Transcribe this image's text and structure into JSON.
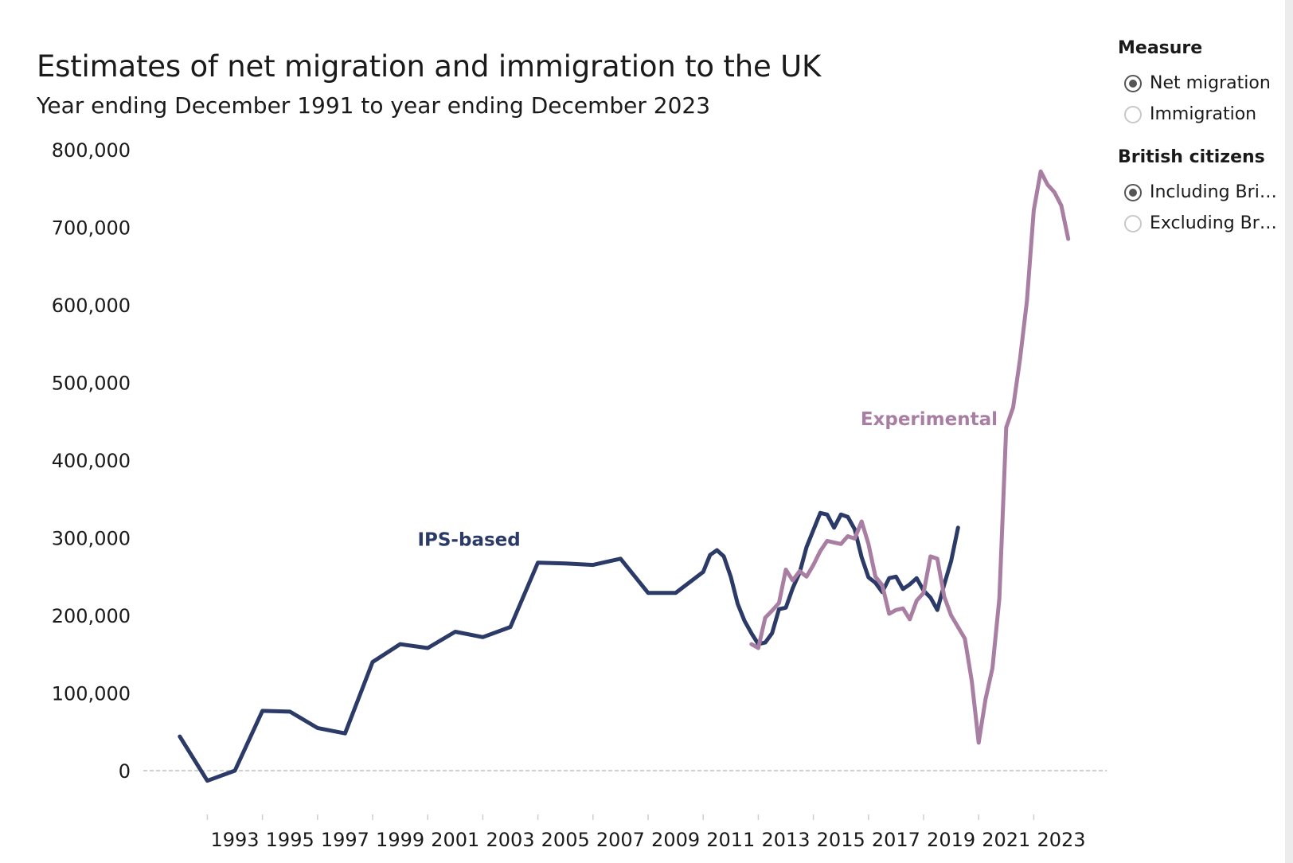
{
  "chart_data": {
    "type": "line",
    "title": "Estimates of net migration and immigration to the UK",
    "subtitle": "Year ending December 1991 to year ending December 2023",
    "ylim": [
      -20000,
      800000
    ],
    "y_ticks": [
      0,
      100000,
      200000,
      300000,
      400000,
      500000,
      600000,
      700000,
      800000
    ],
    "y_tick_labels": [
      "0",
      "100,000",
      "200,000",
      "300,000",
      "400,000",
      "500,000",
      "600,000",
      "700,000",
      "800,000"
    ],
    "x_tick_labels": [
      "1993",
      "1995",
      "1997",
      "1999",
      "2001",
      "2003",
      "2005",
      "2007",
      "2009",
      "2011",
      "2013",
      "2015",
      "2017",
      "2019",
      "2021",
      "2023"
    ],
    "xlim": [
      1990.7,
      2024.9
    ],
    "grid": false,
    "zero_line": "dashed",
    "series": [
      {
        "name": "IPS-based",
        "color": "#2b3a67",
        "points": [
          [
            1991.0,
            44000
          ],
          [
            1992.0,
            -13000
          ],
          [
            1993.0,
            0
          ],
          [
            1994.0,
            77000
          ],
          [
            1995.0,
            76000
          ],
          [
            1996.0,
            55000
          ],
          [
            1997.0,
            48000
          ],
          [
            1998.0,
            140000
          ],
          [
            1999.0,
            163000
          ],
          [
            2000.0,
            158000
          ],
          [
            2001.0,
            179000
          ],
          [
            2002.0,
            172000
          ],
          [
            2003.0,
            185000
          ],
          [
            2004.0,
            268000
          ],
          [
            2005.0,
            267000
          ],
          [
            2006.0,
            265000
          ],
          [
            2007.0,
            273000
          ],
          [
            2008.0,
            229000
          ],
          [
            2009.0,
            229000
          ],
          [
            2010.0,
            256000
          ],
          [
            2010.25,
            278000
          ],
          [
            2010.5,
            284000
          ],
          [
            2010.75,
            276000
          ],
          [
            2011.0,
            250000
          ],
          [
            2011.25,
            215000
          ],
          [
            2011.5,
            193000
          ],
          [
            2011.75,
            177000
          ],
          [
            2012.0,
            163000
          ],
          [
            2012.25,
            165000
          ],
          [
            2012.5,
            177000
          ],
          [
            2012.75,
            208000
          ],
          [
            2013.0,
            210000
          ],
          [
            2013.25,
            235000
          ],
          [
            2013.5,
            255000
          ],
          [
            2013.75,
            288000
          ],
          [
            2014.0,
            310000
          ],
          [
            2014.25,
            332000
          ],
          [
            2014.5,
            330000
          ],
          [
            2014.75,
            313000
          ],
          [
            2015.0,
            330000
          ],
          [
            2015.25,
            327000
          ],
          [
            2015.5,
            311000
          ],
          [
            2015.75,
            275000
          ],
          [
            2016.0,
            249000
          ],
          [
            2016.25,
            242000
          ],
          [
            2016.5,
            230000
          ],
          [
            2016.75,
            248000
          ],
          [
            2017.0,
            250000
          ],
          [
            2017.25,
            234000
          ],
          [
            2017.5,
            240000
          ],
          [
            2017.75,
            248000
          ],
          [
            2018.0,
            232000
          ],
          [
            2018.25,
            223000
          ],
          [
            2018.5,
            207000
          ],
          [
            2018.75,
            240000
          ],
          [
            2019.0,
            270000
          ],
          [
            2019.25,
            313000
          ]
        ]
      },
      {
        "name": "Experimental",
        "color": "#a97ea3",
        "points": [
          [
            2011.75,
            163000
          ],
          [
            2012.0,
            158000
          ],
          [
            2012.25,
            197000
          ],
          [
            2012.5,
            206000
          ],
          [
            2012.75,
            216000
          ],
          [
            2013.0,
            259000
          ],
          [
            2013.25,
            245000
          ],
          [
            2013.5,
            257000
          ],
          [
            2013.75,
            250000
          ],
          [
            2014.0,
            265000
          ],
          [
            2014.25,
            283000
          ],
          [
            2014.5,
            296000
          ],
          [
            2014.75,
            294000
          ],
          [
            2015.0,
            292000
          ],
          [
            2015.25,
            302000
          ],
          [
            2015.5,
            299000
          ],
          [
            2015.75,
            321000
          ],
          [
            2016.0,
            292000
          ],
          [
            2016.25,
            250000
          ],
          [
            2016.5,
            239000
          ],
          [
            2016.75,
            202000
          ],
          [
            2017.0,
            207000
          ],
          [
            2017.25,
            209000
          ],
          [
            2017.5,
            195000
          ],
          [
            2017.75,
            219000
          ],
          [
            2018.0,
            229000
          ],
          [
            2018.25,
            276000
          ],
          [
            2018.5,
            273000
          ],
          [
            2018.75,
            224000
          ],
          [
            2019.0,
            200000
          ],
          [
            2019.25,
            185000
          ],
          [
            2019.5,
            170000
          ],
          [
            2019.75,
            115000
          ],
          [
            2020.0,
            36000
          ],
          [
            2020.25,
            92000
          ],
          [
            2020.5,
            132000
          ],
          [
            2020.75,
            222000
          ],
          [
            2021.0,
            442000
          ],
          [
            2021.25,
            468000
          ],
          [
            2021.5,
            530000
          ],
          [
            2021.75,
            605000
          ],
          [
            2022.0,
            722000
          ],
          [
            2022.25,
            772000
          ],
          [
            2022.5,
            755000
          ],
          [
            2022.75,
            745000
          ],
          [
            2023.0,
            728000
          ],
          [
            2023.25,
            685000
          ]
        ]
      }
    ],
    "annotations": [
      {
        "text": "IPS-based",
        "x": 2001.5,
        "y": 290000,
        "color": "#2b3a67"
      },
      {
        "text": "Experimental",
        "x": 2018.2,
        "y": 445000,
        "color": "#a97ea3"
      }
    ]
  },
  "filters": {
    "measure": {
      "heading": "Measure",
      "options": [
        {
          "label": "Net migration",
          "checked": true
        },
        {
          "label": "Immigration",
          "checked": false
        }
      ]
    },
    "british_citizens": {
      "heading": "British citizens",
      "options": [
        {
          "label": "Including Brit..",
          "checked": true
        },
        {
          "label": "Excluding Bri...",
          "checked": false
        }
      ]
    }
  }
}
